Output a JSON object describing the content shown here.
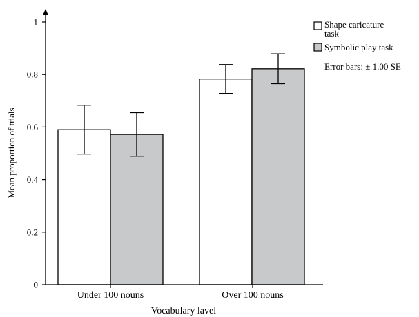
{
  "chart_data": {
    "type": "bar",
    "title": "",
    "xlabel": "Vocabulary lavel",
    "ylabel": "Mean proportion of trials",
    "ylim": [
      0,
      1
    ],
    "yticks": [
      "0",
      "0.2",
      "0.4",
      "0.6",
      "0.8",
      "1"
    ],
    "categories": [
      "Under 100 nouns",
      "Over 100 nouns"
    ],
    "series": [
      {
        "name": "Shape caricature task",
        "values": [
          0.59,
          0.783
        ],
        "error": [
          0.093,
          0.055
        ],
        "color": "#ffffff"
      },
      {
        "name": "Symbolic play task",
        "values": [
          0.572,
          0.822
        ],
        "error": [
          0.083,
          0.057
        ],
        "color": "#c8c9cb"
      }
    ],
    "legend": {
      "placement": "top-right",
      "entries": [
        "Shape caricature task",
        "Symbolic play task"
      ],
      "note": "Error bars: ± 1.00 SE"
    },
    "grid": false
  }
}
